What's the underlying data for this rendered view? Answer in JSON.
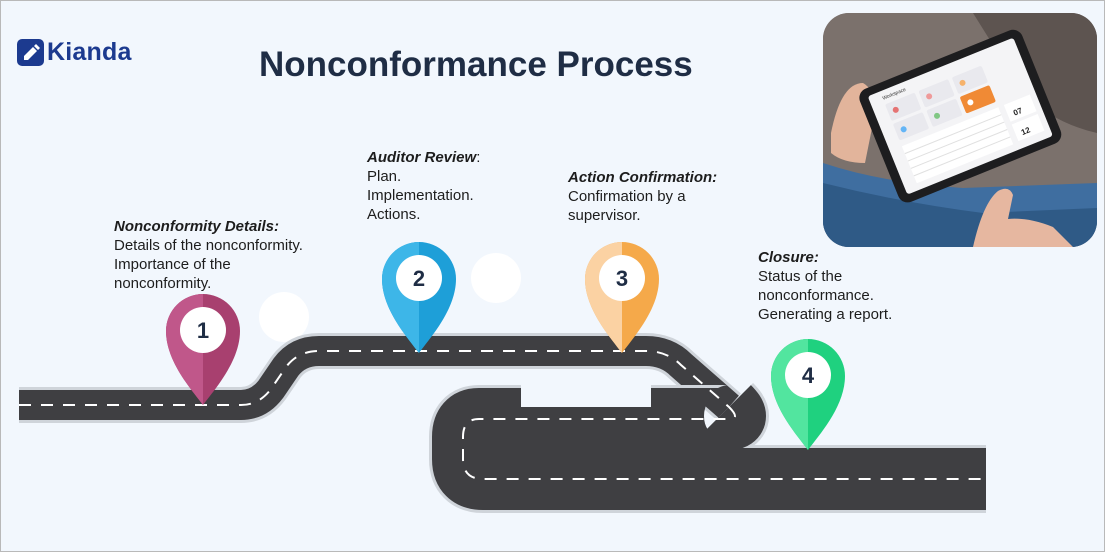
{
  "brand": {
    "name": "Kianda",
    "color": "#1c3a8f"
  },
  "title": "Nonconformance Process",
  "steps": [
    {
      "number": "1",
      "heading": "Nonconformity Details:",
      "lines": [
        "Details of the nonconformity.",
        "Importance of the",
        "nonconformity."
      ],
      "color": "#a8406f"
    },
    {
      "number": "2",
      "heading": "Auditor Review",
      "heading_suffix": ":",
      "lines": [
        "Plan.",
        "Implementation.",
        "Actions."
      ],
      "color": "#1e9fd8"
    },
    {
      "number": "3",
      "heading": "Action Confirmation:",
      "lines": [
        "Confirmation by a",
        "supervisor."
      ],
      "color": "#f5a94a"
    },
    {
      "number": "4",
      "heading": "Closure:",
      "lines": [
        "Status of the",
        "nonconformance.",
        "Generating a report."
      ],
      "color": "#1fd17f"
    }
  ],
  "tablet": {
    "app_label": "Workspace",
    "big_number_1": "07",
    "big_number_2": "12"
  }
}
